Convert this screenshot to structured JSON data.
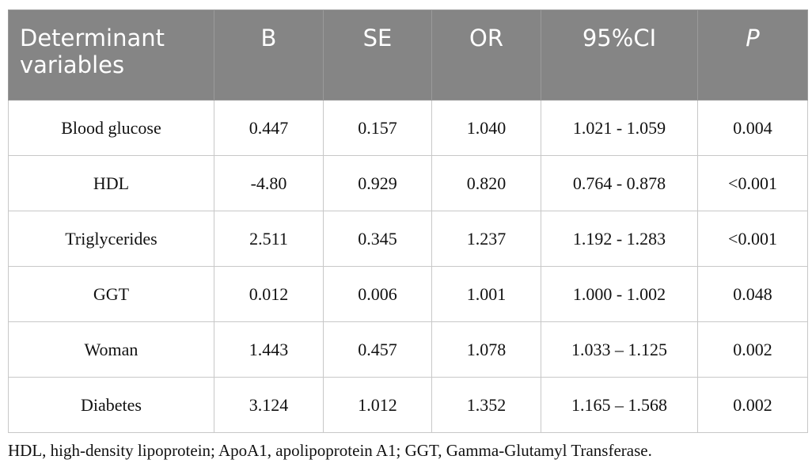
{
  "table": {
    "header": [
      "Determinant variables",
      "B",
      "SE",
      "OR",
      "95%CI",
      "P"
    ],
    "rows": [
      [
        "Blood glucose",
        "0.447",
        "0.157",
        "1.040",
        "1.021 - 1.059",
        "0.004"
      ],
      [
        "HDL",
        "-4.80",
        "0.929",
        "0.820",
        "0.764 - 0.878",
        "<0.001"
      ],
      [
        "Triglycerides",
        "2.511",
        "0.345",
        "1.237",
        "1.192 - 1.283",
        "<0.001"
      ],
      [
        "GGT",
        "0.012",
        "0.006",
        "1.001",
        "1.000 - 1.002",
        "0.048"
      ],
      [
        "Woman",
        "1.443",
        "0.457",
        "1.078",
        "1.033 – 1.125",
        "0.002"
      ],
      [
        "Diabetes",
        "3.124",
        "1.012",
        "1.352",
        "1.165 – 1.568",
        "0.002"
      ]
    ]
  },
  "footnote": "HDL, high-density lipoprotein; ApoA1, apolipoprotein A1; GGT, Gamma-Glutamyl Transferase."
}
